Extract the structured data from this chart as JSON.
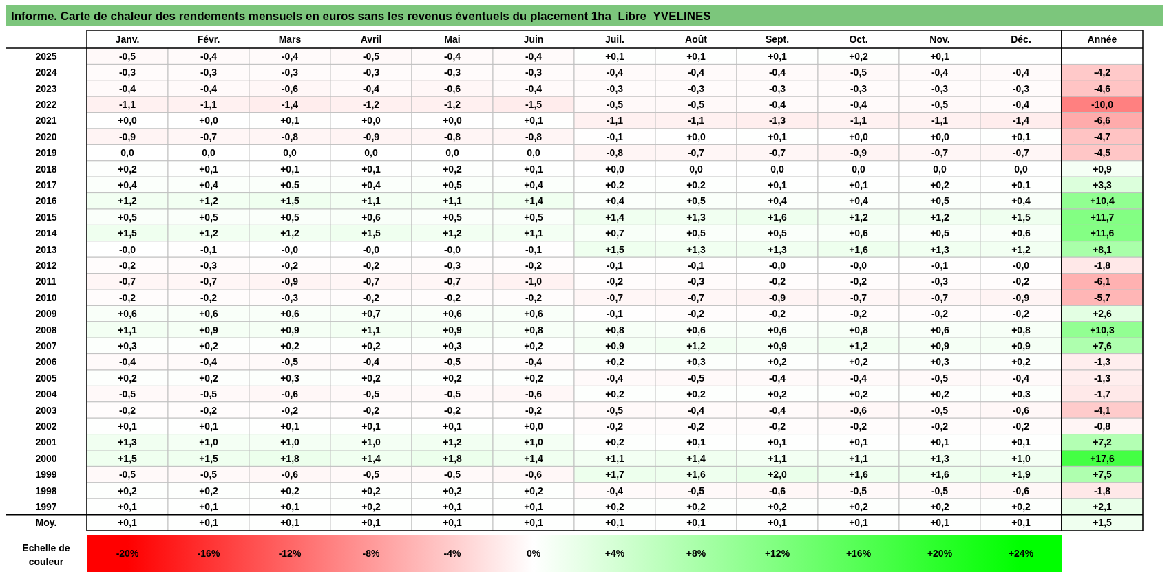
{
  "chart_data": {
    "type": "heatmap",
    "title": "Informe. Carte de chaleur des rendements mensuels en euros sans les revenus éventuels du placement 1ha_Libre_YVELINES",
    "categories": [
      "Janv.",
      "Févr.",
      "Mars",
      "Avril",
      "Mai",
      "Juin",
      "Juil.",
      "Août",
      "Sept.",
      "Oct.",
      "Nov.",
      "Déc.",
      "Année"
    ],
    "y_categories": [
      "2025",
      "2024",
      "2023",
      "2022",
      "2021",
      "2020",
      "2019",
      "2018",
      "2017",
      "2016",
      "2015",
      "2014",
      "2013",
      "2012",
      "2011",
      "2010",
      "2009",
      "2008",
      "2007",
      "2006",
      "2005",
      "2004",
      "2003",
      "2002",
      "2001",
      "2000",
      "1999",
      "1998",
      "1997",
      "Moy."
    ],
    "cells": [
      [
        -0.5,
        -0.4,
        -0.4,
        -0.5,
        -0.4,
        -0.4,
        0.1,
        0.1,
        0.1,
        0.2,
        0.1,
        null,
        null
      ],
      [
        -0.3,
        -0.3,
        -0.3,
        -0.3,
        -0.3,
        -0.3,
        -0.4,
        -0.4,
        -0.4,
        -0.5,
        -0.4,
        -0.4,
        -4.2
      ],
      [
        -0.4,
        -0.4,
        -0.6,
        -0.4,
        -0.6,
        -0.4,
        -0.3,
        -0.3,
        -0.3,
        -0.3,
        -0.3,
        -0.3,
        -4.6
      ],
      [
        -1.1,
        -1.1,
        -1.4,
        -1.2,
        -1.2,
        -1.5,
        -0.5,
        -0.5,
        -0.4,
        -0.4,
        -0.5,
        -0.4,
        -10.0
      ],
      [
        0,
        0,
        0.1,
        0,
        0,
        0.1,
        -1.1,
        -1.1,
        -1.3,
        -1.1,
        -1.1,
        -1.4,
        -6.6
      ],
      [
        -0.9,
        -0.7,
        -0.8,
        -0.9,
        -0.8,
        -0.8,
        -0.1,
        0,
        0.1,
        0,
        0,
        0.1,
        -4.7
      ],
      [
        0,
        0,
        0,
        0,
        0,
        0,
        -0.8,
        -0.7,
        -0.7,
        -0.9,
        -0.7,
        -0.7,
        -4.5
      ],
      [
        0.2,
        0.1,
        0.1,
        0.1,
        0.2,
        0.1,
        0,
        0,
        0,
        0,
        0,
        0,
        0.9
      ],
      [
        0.4,
        0.4,
        0.5,
        0.4,
        0.5,
        0.4,
        0.2,
        0.2,
        0.1,
        0.1,
        0.2,
        0.1,
        3.3
      ],
      [
        1.2,
        1.2,
        1.5,
        1.1,
        1.1,
        1.4,
        0.4,
        0.5,
        0.4,
        0.4,
        0.5,
        0.4,
        10.4
      ],
      [
        0.5,
        0.5,
        0.5,
        0.6,
        0.5,
        0.5,
        1.4,
        1.3,
        1.6,
        1.2,
        1.2,
        1.5,
        11.7
      ],
      [
        1.5,
        1.2,
        1.2,
        1.5,
        1.2,
        1.1,
        0.7,
        0.5,
        0.5,
        0.6,
        0.5,
        0.6,
        11.6
      ],
      [
        0,
        -0.1,
        0,
        0,
        0,
        -0.1,
        1.5,
        1.3,
        1.3,
        1.6,
        1.3,
        1.2,
        8.1
      ],
      [
        -0.2,
        -0.3,
        -0.2,
        -0.2,
        -0.3,
        -0.2,
        -0.1,
        -0.1,
        0,
        0,
        -0.1,
        0,
        -1.8
      ],
      [
        -0.7,
        -0.7,
        -0.9,
        -0.7,
        -0.7,
        -1.0,
        -0.2,
        -0.3,
        -0.2,
        -0.2,
        -0.3,
        -0.2,
        -6.1
      ],
      [
        -0.2,
        -0.2,
        -0.3,
        -0.2,
        -0.2,
        -0.2,
        -0.7,
        -0.7,
        -0.9,
        -0.7,
        -0.7,
        -0.9,
        -5.7
      ],
      [
        0.6,
        0.6,
        0.6,
        0.7,
        0.6,
        0.6,
        -0.1,
        -0.2,
        -0.2,
        -0.2,
        -0.2,
        -0.2,
        2.6
      ],
      [
        1.1,
        0.9,
        0.9,
        1.1,
        0.9,
        0.8,
        0.8,
        0.6,
        0.6,
        0.8,
        0.6,
        0.8,
        10.3
      ],
      [
        0.3,
        0.2,
        0.2,
        0.2,
        0.3,
        0.2,
        0.9,
        1.2,
        0.9,
        1.2,
        0.9,
        0.9,
        7.6
      ],
      [
        -0.4,
        -0.4,
        -0.5,
        -0.4,
        -0.5,
        -0.4,
        0.2,
        0.3,
        0.2,
        0.2,
        0.3,
        0.2,
        -1.3
      ],
      [
        0.2,
        0.2,
        0.3,
        0.2,
        0.2,
        0.2,
        -0.4,
        -0.5,
        -0.4,
        -0.4,
        -0.5,
        -0.4,
        -1.3
      ],
      [
        -0.5,
        -0.5,
        -0.6,
        -0.5,
        -0.5,
        -0.6,
        0.2,
        0.2,
        0.2,
        0.2,
        0.2,
        0.3,
        -1.7
      ],
      [
        -0.2,
        -0.2,
        -0.2,
        -0.2,
        -0.2,
        -0.2,
        -0.5,
        -0.4,
        -0.4,
        -0.6,
        -0.5,
        -0.6,
        -4.1
      ],
      [
        0.1,
        0.1,
        0.1,
        0.1,
        0.1,
        0,
        -0.2,
        -0.2,
        -0.2,
        -0.2,
        -0.2,
        -0.2,
        -0.8
      ],
      [
        1.3,
        1.0,
        1.0,
        1.0,
        1.2,
        1.0,
        0.2,
        0.1,
        0.1,
        0.1,
        0.1,
        0.1,
        7.2
      ],
      [
        1.5,
        1.5,
        1.8,
        1.4,
        1.8,
        1.4,
        1.1,
        1.4,
        1.1,
        1.1,
        1.3,
        1.0,
        17.6
      ],
      [
        -0.5,
        -0.5,
        -0.6,
        -0.5,
        -0.5,
        -0.6,
        1.7,
        1.6,
        2.0,
        1.6,
        1.6,
        1.9,
        7.5
      ],
      [
        0.2,
        0.2,
        0.2,
        0.2,
        0.2,
        0.2,
        -0.4,
        -0.5,
        -0.6,
        -0.5,
        -0.5,
        -0.6,
        -1.8
      ],
      [
        0.1,
        0.1,
        0.1,
        0.2,
        0.1,
        0.1,
        0.2,
        0.2,
        0.2,
        0.2,
        0.2,
        0.2,
        2.1
      ],
      [
        0.1,
        0.1,
        0.1,
        0.1,
        0.1,
        0.1,
        0.1,
        0.1,
        0.1,
        0.1,
        0.1,
        0.1,
        1.5
      ]
    ],
    "cell_labels": [
      [
        "-0,5",
        "-0,4",
        "-0,4",
        "-0,5",
        "-0,4",
        "-0,4",
        "+0,1",
        "+0,1",
        "+0,1",
        "+0,2",
        "+0,1",
        null,
        null
      ],
      [
        "-0,3",
        "-0,3",
        "-0,3",
        "-0,3",
        "-0,3",
        "-0,3",
        "-0,4",
        "-0,4",
        "-0,4",
        "-0,5",
        "-0,4",
        "-0,4",
        "-4,2"
      ],
      [
        "-0,4",
        "-0,4",
        "-0,6",
        "-0,4",
        "-0,6",
        "-0,4",
        "-0,3",
        "-0,3",
        "-0,3",
        "-0,3",
        "-0,3",
        "-0,3",
        "-4,6"
      ],
      [
        "-1,1",
        "-1,1",
        "-1,4",
        "-1,2",
        "-1,2",
        "-1,5",
        "-0,5",
        "-0,5",
        "-0,4",
        "-0,4",
        "-0,5",
        "-0,4",
        "-10,0"
      ],
      [
        "+0,0",
        "+0,0",
        "+0,1",
        "+0,0",
        "+0,0",
        "+0,1",
        "-1,1",
        "-1,1",
        "-1,3",
        "-1,1",
        "-1,1",
        "-1,4",
        "-6,6"
      ],
      [
        "-0,9",
        "-0,7",
        "-0,8",
        "-0,9",
        "-0,8",
        "-0,8",
        "-0,1",
        "+0,0",
        "+0,1",
        "+0,0",
        "+0,0",
        "+0,1",
        "-4,7"
      ],
      [
        "0,0",
        "0,0",
        "0,0",
        "0,0",
        "0,0",
        "0,0",
        "-0,8",
        "-0,7",
        "-0,7",
        "-0,9",
        "-0,7",
        "-0,7",
        "-4,5"
      ],
      [
        "+0,2",
        "+0,1",
        "+0,1",
        "+0,1",
        "+0,2",
        "+0,1",
        "+0,0",
        "0,0",
        "0,0",
        "0,0",
        "0,0",
        "0,0",
        "+0,9"
      ],
      [
        "+0,4",
        "+0,4",
        "+0,5",
        "+0,4",
        "+0,5",
        "+0,4",
        "+0,2",
        "+0,2",
        "+0,1",
        "+0,1",
        "+0,2",
        "+0,1",
        "+3,3"
      ],
      [
        "+1,2",
        "+1,2",
        "+1,5",
        "+1,1",
        "+1,1",
        "+1,4",
        "+0,4",
        "+0,5",
        "+0,4",
        "+0,4",
        "+0,5",
        "+0,4",
        "+10,4"
      ],
      [
        "+0,5",
        "+0,5",
        "+0,5",
        "+0,6",
        "+0,5",
        "+0,5",
        "+1,4",
        "+1,3",
        "+1,6",
        "+1,2",
        "+1,2",
        "+1,5",
        "+11,7"
      ],
      [
        "+1,5",
        "+1,2",
        "+1,2",
        "+1,5",
        "+1,2",
        "+1,1",
        "+0,7",
        "+0,5",
        "+0,5",
        "+0,6",
        "+0,5",
        "+0,6",
        "+11,6"
      ],
      [
        "-0,0",
        "-0,1",
        "-0,0",
        "-0,0",
        "-0,0",
        "-0,1",
        "+1,5",
        "+1,3",
        "+1,3",
        "+1,6",
        "+1,3",
        "+1,2",
        "+8,1"
      ],
      [
        "-0,2",
        "-0,3",
        "-0,2",
        "-0,2",
        "-0,3",
        "-0,2",
        "-0,1",
        "-0,1",
        "-0,0",
        "-0,0",
        "-0,1",
        "-0,0",
        "-1,8"
      ],
      [
        "-0,7",
        "-0,7",
        "-0,9",
        "-0,7",
        "-0,7",
        "-1,0",
        "-0,2",
        "-0,3",
        "-0,2",
        "-0,2",
        "-0,3",
        "-0,2",
        "-6,1"
      ],
      [
        "-0,2",
        "-0,2",
        "-0,3",
        "-0,2",
        "-0,2",
        "-0,2",
        "-0,7",
        "-0,7",
        "-0,9",
        "-0,7",
        "-0,7",
        "-0,9",
        "-5,7"
      ],
      [
        "+0,6",
        "+0,6",
        "+0,6",
        "+0,7",
        "+0,6",
        "+0,6",
        "-0,1",
        "-0,2",
        "-0,2",
        "-0,2",
        "-0,2",
        "-0,2",
        "+2,6"
      ],
      [
        "+1,1",
        "+0,9",
        "+0,9",
        "+1,1",
        "+0,9",
        "+0,8",
        "+0,8",
        "+0,6",
        "+0,6",
        "+0,8",
        "+0,6",
        "+0,8",
        "+10,3"
      ],
      [
        "+0,3",
        "+0,2",
        "+0,2",
        "+0,2",
        "+0,3",
        "+0,2",
        "+0,9",
        "+1,2",
        "+0,9",
        "+1,2",
        "+0,9",
        "+0,9",
        "+7,6"
      ],
      [
        "-0,4",
        "-0,4",
        "-0,5",
        "-0,4",
        "-0,5",
        "-0,4",
        "+0,2",
        "+0,3",
        "+0,2",
        "+0,2",
        "+0,3",
        "+0,2",
        "-1,3"
      ],
      [
        "+0,2",
        "+0,2",
        "+0,3",
        "+0,2",
        "+0,2",
        "+0,2",
        "-0,4",
        "-0,5",
        "-0,4",
        "-0,4",
        "-0,5",
        "-0,4",
        "-1,3"
      ],
      [
        "-0,5",
        "-0,5",
        "-0,6",
        "-0,5",
        "-0,5",
        "-0,6",
        "+0,2",
        "+0,2",
        "+0,2",
        "+0,2",
        "+0,2",
        "+0,3",
        "-1,7"
      ],
      [
        "-0,2",
        "-0,2",
        "-0,2",
        "-0,2",
        "-0,2",
        "-0,2",
        "-0,5",
        "-0,4",
        "-0,4",
        "-0,6",
        "-0,5",
        "-0,6",
        "-4,1"
      ],
      [
        "+0,1",
        "+0,1",
        "+0,1",
        "+0,1",
        "+0,1",
        "+0,0",
        "-0,2",
        "-0,2",
        "-0,2",
        "-0,2",
        "-0,2",
        "-0,2",
        "-0,8"
      ],
      [
        "+1,3",
        "+1,0",
        "+1,0",
        "+1,0",
        "+1,2",
        "+1,0",
        "+0,2",
        "+0,1",
        "+0,1",
        "+0,1",
        "+0,1",
        "+0,1",
        "+7,2"
      ],
      [
        "+1,5",
        "+1,5",
        "+1,8",
        "+1,4",
        "+1,8",
        "+1,4",
        "+1,1",
        "+1,4",
        "+1,1",
        "+1,1",
        "+1,3",
        "+1,0",
        "+17,6"
      ],
      [
        "-0,5",
        "-0,5",
        "-0,6",
        "-0,5",
        "-0,5",
        "-0,6",
        "+1,7",
        "+1,6",
        "+2,0",
        "+1,6",
        "+1,6",
        "+1,9",
        "+7,5"
      ],
      [
        "+0,2",
        "+0,2",
        "+0,2",
        "+0,2",
        "+0,2",
        "+0,2",
        "-0,4",
        "-0,5",
        "-0,6",
        "-0,5",
        "-0,5",
        "-0,6",
        "-1,8"
      ],
      [
        "+0,1",
        "+0,1",
        "+0,1",
        "+0,2",
        "+0,1",
        "+0,1",
        "+0,2",
        "+0,2",
        "+0,2",
        "+0,2",
        "+0,2",
        "+0,2",
        "+2,1"
      ],
      [
        "+0,1",
        "+0,1",
        "+0,1",
        "+0,1",
        "+0,1",
        "+0,1",
        "+0,1",
        "+0,1",
        "+0,1",
        "+0,1",
        "+0,1",
        "+0,1",
        "+1,5"
      ]
    ],
    "clabel": "Echelle de couleur",
    "clim": [
      -20,
      24
    ],
    "cticks": [
      {
        "value": -20,
        "label": "-20%"
      },
      {
        "value": -16,
        "label": "-16%"
      },
      {
        "value": -12,
        "label": "-12%"
      },
      {
        "value": -8,
        "label": "-8%"
      },
      {
        "value": -4,
        "label": "-4%"
      },
      {
        "value": 0,
        "label": "0%"
      },
      {
        "value": 4,
        "label": "+4%"
      },
      {
        "value": 8,
        "label": "+8%"
      },
      {
        "value": 12,
        "label": "+12%"
      },
      {
        "value": 16,
        "label": "+16%"
      },
      {
        "value": 20,
        "label": "+20%"
      },
      {
        "value": 24,
        "label": "+24%"
      }
    ]
  }
}
